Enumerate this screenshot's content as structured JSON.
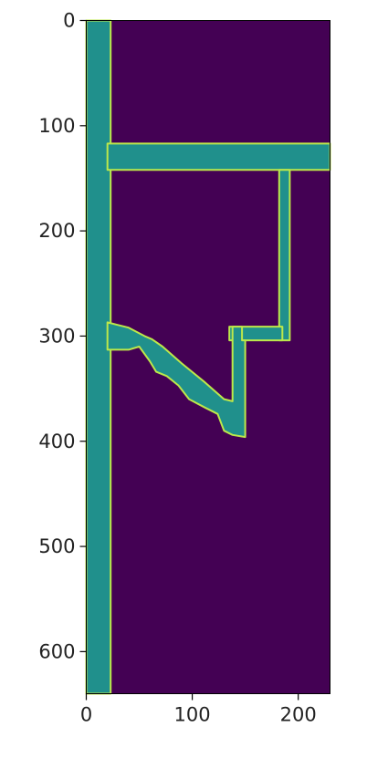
{
  "chart_data": {
    "type": "heatmap",
    "title": "",
    "xlabel": "",
    "ylabel": "",
    "xlim": [
      0,
      230
    ],
    "ylim": [
      640,
      0
    ],
    "x_ticks": [
      0,
      100,
      200
    ],
    "y_ticks": [
      0,
      100,
      200,
      300,
      400,
      500,
      600
    ],
    "grid": false,
    "legend": "none",
    "colormap": "viridis",
    "colors": {
      "background": "#440154",
      "region": "#20908c",
      "edge": "#bde84a"
    },
    "regions": [
      {
        "polygon": [
          [
            0,
            0
          ],
          [
            23,
            0
          ],
          [
            23,
            640
          ],
          [
            0,
            640
          ]
        ]
      },
      {
        "polygon": [
          [
            20,
            117
          ],
          [
            230,
            117
          ],
          [
            230,
            142
          ],
          [
            20,
            142
          ]
        ]
      },
      {
        "polygon": [
          [
            182,
            142
          ],
          [
            192,
            142
          ],
          [
            192,
            304
          ],
          [
            182,
            304
          ]
        ]
      },
      {
        "polygon": [
          [
            135,
            291
          ],
          [
            185,
            291
          ],
          [
            185,
            304
          ],
          [
            135,
            304
          ]
        ]
      },
      {
        "polygon": [
          [
            20,
            287
          ],
          [
            40,
            292
          ],
          [
            55,
            300
          ],
          [
            62,
            303
          ],
          [
            72,
            310
          ],
          [
            90,
            326
          ],
          [
            112,
            344
          ],
          [
            130,
            360
          ],
          [
            138,
            362
          ],
          [
            138,
            291
          ],
          [
            147,
            291
          ],
          [
            147,
            304
          ],
          [
            150,
            304
          ],
          [
            150,
            396
          ],
          [
            138,
            394
          ],
          [
            130,
            390
          ],
          [
            124,
            374
          ],
          [
            112,
            368
          ],
          [
            97,
            360
          ],
          [
            87,
            347
          ],
          [
            76,
            338
          ],
          [
            66,
            334
          ],
          [
            60,
            324
          ],
          [
            50,
            310
          ],
          [
            40,
            313
          ],
          [
            20,
            313
          ]
        ]
      }
    ]
  }
}
